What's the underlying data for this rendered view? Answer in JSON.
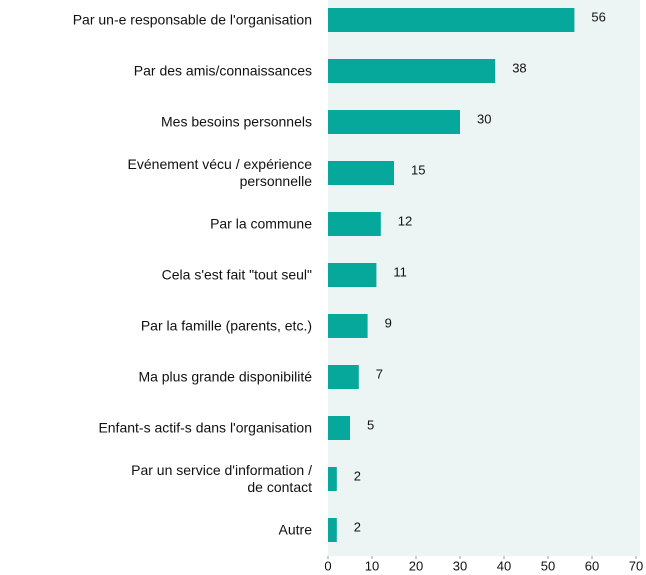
{
  "chart_data": {
    "type": "barh",
    "categories": [
      "Par un-e responsable de l'organisation",
      "Par des amis/connaissances",
      "Mes besoins personnels",
      "Evénement vécu / expérience\npersonnelle",
      "Par la commune",
      "Cela s'est fait \"tout seul\"",
      "Par la famille (parents, etc.)",
      "Ma plus grande disponibilité",
      "Enfant-s actif-s dans l'organisation",
      "Par un service d'information /\nde contact",
      "Autre"
    ],
    "values": [
      56,
      38,
      30,
      15,
      12,
      11,
      9,
      7,
      5,
      2,
      2
    ],
    "color": "#05a89a",
    "xlim": [
      0,
      70
    ],
    "xticks": [
      0,
      10,
      20,
      30,
      40,
      50,
      60,
      70
    ]
  }
}
